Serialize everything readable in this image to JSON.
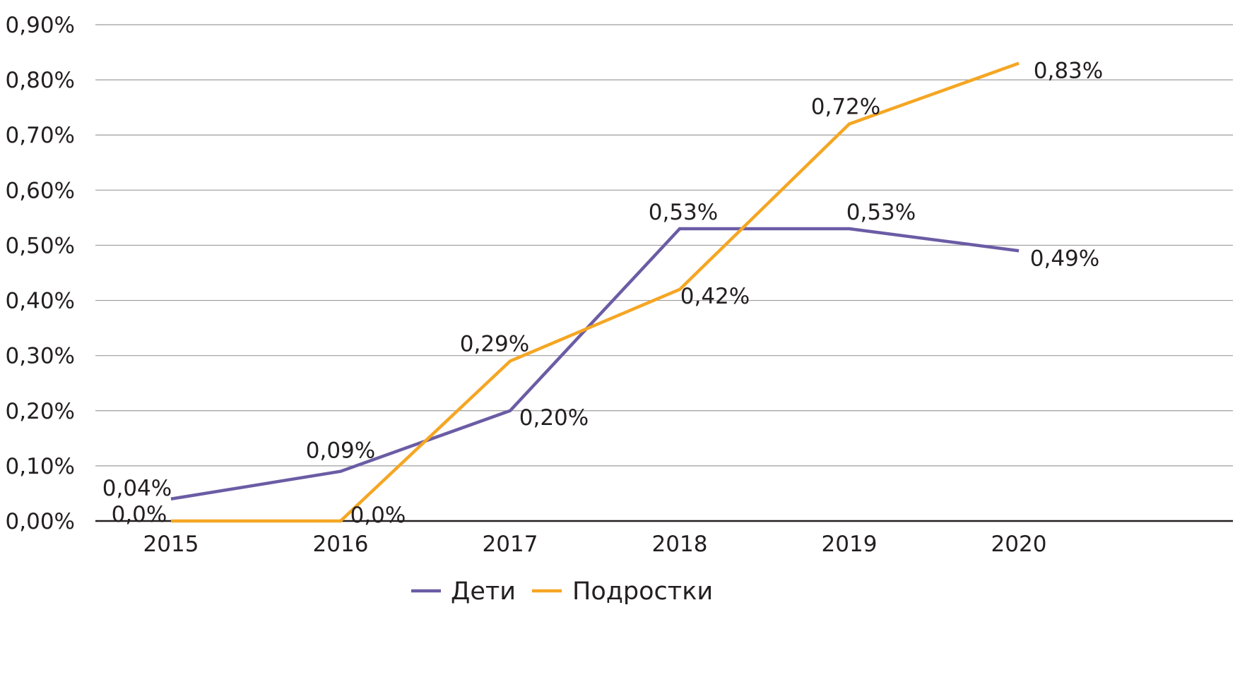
{
  "chart_data": {
    "type": "line",
    "categories": [
      "2015",
      "2016",
      "2017",
      "2018",
      "2019",
      "2020"
    ],
    "y_ticks": [
      "0,00%",
      "0,10%",
      "0,20%",
      "0,30%",
      "0,40%",
      "0,50%",
      "0,60%",
      "0,70%",
      "0,80%",
      "0,90%"
    ],
    "ylim": [
      0,
      0.9
    ],
    "grid": true,
    "legend_position": "bottom",
    "series": [
      {
        "name": "Дети",
        "color": "#6b5ca5",
        "values": [
          0.04,
          0.09,
          0.2,
          0.53,
          0.53,
          0.49
        ],
        "labels": [
          "0,04%",
          "0,09%",
          "0,20%",
          "0,53%",
          "0,53%",
          "0,49%"
        ]
      },
      {
        "name": "Подростки",
        "color": "#f5a623",
        "values": [
          0.0,
          0.0,
          0.29,
          0.42,
          0.72,
          0.83
        ],
        "labels": [
          "0,0%",
          "0,0%",
          "0,29%",
          "0,42%",
          "0,72%",
          "0,83%"
        ]
      }
    ]
  }
}
